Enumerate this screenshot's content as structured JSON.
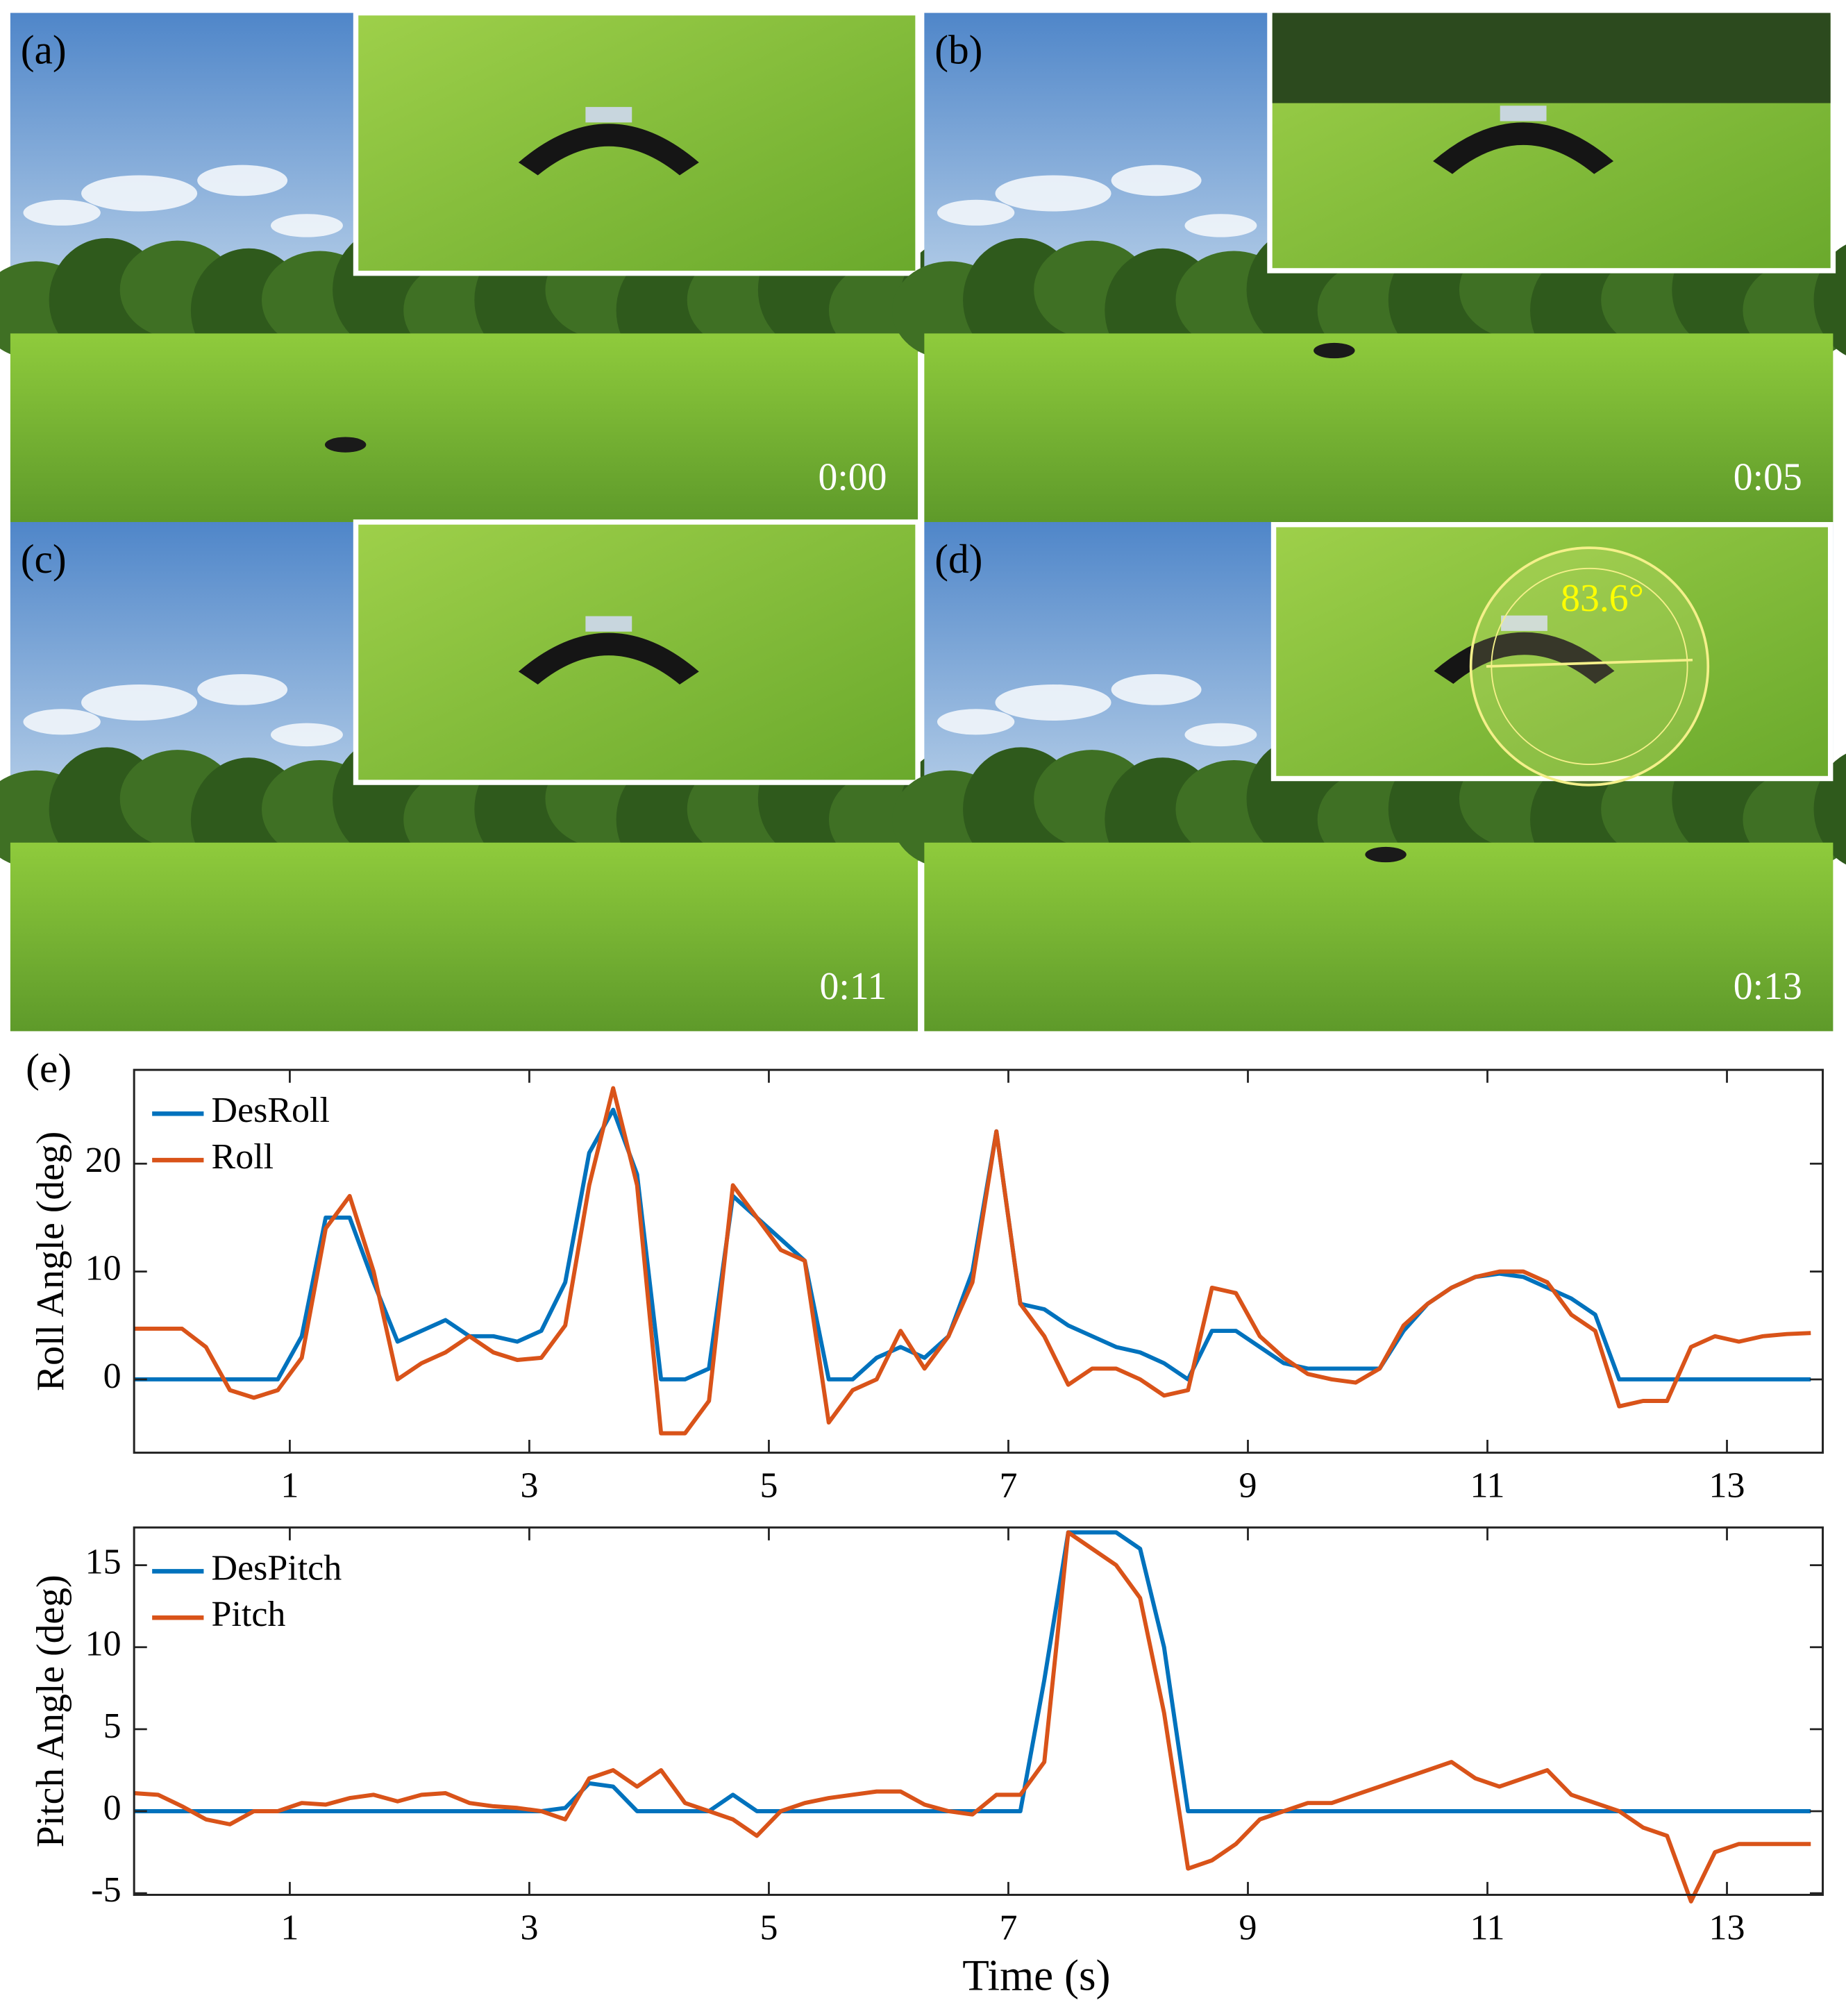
{
  "panels": [
    {
      "label": "(a)",
      "time": "0:00"
    },
    {
      "label": "(b)",
      "time": "0:05"
    },
    {
      "label": "(c)",
      "time": "0:11"
    },
    {
      "label": "(d)",
      "time": "0:13",
      "angle_label": "83.6°"
    }
  ],
  "chart_data": [
    {
      "type": "line",
      "panel_label": "(e)",
      "y_label": "Roll Angle (deg)",
      "x": [
        -0.3,
        -0.1,
        0.1,
        0.3,
        0.5,
        0.7,
        0.9,
        1.1,
        1.3,
        1.5,
        1.7,
        1.9,
        2.1,
        2.3,
        2.5,
        2.7,
        2.9,
        3.1,
        3.3,
        3.5,
        3.7,
        3.9,
        4.1,
        4.3,
        4.5,
        4.7,
        4.9,
        5.1,
        5.3,
        5.5,
        5.7,
        5.9,
        6.1,
        6.3,
        6.5,
        6.7,
        6.9,
        7.1,
        7.3,
        7.5,
        7.7,
        7.9,
        8.1,
        8.3,
        8.5,
        8.7,
        8.9,
        9.1,
        9.3,
        9.5,
        9.7,
        9.9,
        10.1,
        10.3,
        10.5,
        10.7,
        10.9,
        11.1,
        11.3,
        11.5,
        11.7,
        11.9,
        12.1,
        12.3,
        12.5,
        12.7,
        12.9,
        13.1,
        13.3,
        13.5,
        13.7
      ],
      "series": [
        {
          "name": "DesRoll",
          "color": "#0072bd",
          "values": [
            0,
            0,
            0,
            0,
            0,
            0,
            0,
            4,
            15,
            15,
            9,
            3.5,
            4.5,
            5.5,
            4,
            4,
            3.5,
            4.5,
            9,
            21,
            25,
            19,
            0,
            0,
            1,
            17,
            15,
            13,
            11,
            0,
            0,
            2,
            3,
            2,
            4,
            10,
            23,
            7,
            6.5,
            5,
            4,
            3,
            2.5,
            1.5,
            0,
            4.5,
            4.5,
            3,
            1.5,
            1,
            1,
            1,
            1,
            4.5,
            7,
            8.5,
            9.5,
            9.8,
            9.5,
            8.5,
            7.5,
            6,
            0,
            0,
            0,
            0,
            0,
            0,
            0,
            0,
            0
          ]
        },
        {
          "name": "Roll",
          "color": "#d95319",
          "values": [
            4.7,
            4.7,
            4.7,
            3,
            -1,
            -1.7,
            -1,
            2,
            14,
            17,
            10,
            0,
            1.5,
            2.5,
            4,
            2.5,
            1.8,
            2,
            5,
            18,
            27,
            18,
            -5,
            -5,
            -2,
            18,
            15,
            12,
            11,
            -4,
            -1,
            0,
            4.5,
            1,
            4,
            9,
            23,
            7,
            4,
            -0.5,
            1,
            1,
            0,
            -1.5,
            -1,
            8.5,
            8,
            4,
            2,
            0.5,
            0,
            -0.3,
            1,
            5,
            7,
            8.5,
            9.5,
            10,
            10,
            9,
            6,
            4.5,
            -2.5,
            -2,
            -2,
            3,
            4,
            3.5,
            4,
            4.2,
            4.3
          ]
        }
      ],
      "xlim": [
        -0.3,
        13.8
      ],
      "xticks": [
        1,
        3,
        5,
        7,
        9,
        11,
        13
      ],
      "ylim": [
        -6.8,
        28.7
      ],
      "yticks": [
        0,
        10,
        20
      ]
    },
    {
      "type": "line",
      "y_label": "Pitch Angle (deg)",
      "x_label": "Time (s)",
      "x": [
        -0.3,
        -0.1,
        0.1,
        0.3,
        0.5,
        0.7,
        0.9,
        1.1,
        1.3,
        1.5,
        1.7,
        1.9,
        2.1,
        2.3,
        2.5,
        2.7,
        2.9,
        3.1,
        3.3,
        3.5,
        3.7,
        3.9,
        4.1,
        4.3,
        4.5,
        4.7,
        4.9,
        5.1,
        5.3,
        5.5,
        5.7,
        5.9,
        6.1,
        6.3,
        6.5,
        6.7,
        6.9,
        7.1,
        7.3,
        7.5,
        7.7,
        7.9,
        8.1,
        8.3,
        8.5,
        8.7,
        8.9,
        9.1,
        9.3,
        9.5,
        9.7,
        9.9,
        10.1,
        10.3,
        10.5,
        10.7,
        10.9,
        11.1,
        11.3,
        11.5,
        11.7,
        11.9,
        12.1,
        12.3,
        12.5,
        12.7,
        12.9,
        13.1,
        13.3,
        13.5,
        13.7
      ],
      "series": [
        {
          "name": "DesPitch",
          "color": "#0072bd",
          "values": [
            0,
            0,
            0,
            0,
            0,
            0,
            0,
            0,
            0,
            0,
            0,
            0,
            0,
            0,
            0,
            0,
            0,
            0,
            0.2,
            1.7,
            1.5,
            0,
            0,
            0,
            0,
            1,
            0,
            0,
            0,
            0,
            0,
            0,
            0,
            0,
            0,
            0,
            0,
            0,
            8,
            17,
            17,
            17,
            16,
            10,
            0,
            0,
            0,
            0,
            0,
            0,
            0,
            0,
            0,
            0,
            0,
            0,
            0,
            0,
            0,
            0,
            0,
            0,
            0,
            0,
            0,
            0,
            0,
            0,
            0,
            0,
            0
          ]
        },
        {
          "name": "Pitch",
          "color": "#d95319",
          "values": [
            1.1,
            1,
            0.3,
            -0.5,
            -0.8,
            0,
            0,
            0.5,
            0.4,
            0.8,
            1,
            0.6,
            1,
            1.1,
            0.5,
            0.3,
            0.2,
            0,
            -0.5,
            2,
            2.5,
            1.5,
            2.5,
            0.5,
            0,
            -0.5,
            -1.5,
            0,
            0.5,
            0.8,
            1,
            1.2,
            1.2,
            0.4,
            0,
            -0.2,
            1,
            1,
            3,
            17,
            16,
            15,
            13,
            6,
            -3.5,
            -3,
            -2,
            -0.5,
            0,
            0.5,
            0.5,
            1,
            1.5,
            2,
            2.5,
            3,
            2,
            1.5,
            2,
            2.5,
            1,
            0.5,
            0,
            -1,
            -1.5,
            -5.5,
            -2.5,
            -2,
            -2,
            -2,
            -2
          ]
        }
      ],
      "xlim": [
        -0.3,
        13.8
      ],
      "xticks": [
        1,
        3,
        5,
        7,
        9,
        11,
        13
      ],
      "ylim": [
        -5.1,
        17.3
      ],
      "yticks": [
        -5,
        0,
        5,
        10,
        15
      ]
    }
  ]
}
